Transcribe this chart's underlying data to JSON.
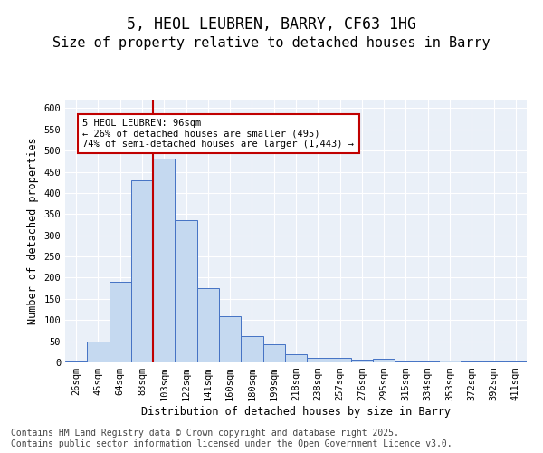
{
  "title_line1": "5, HEOL LEUBREN, BARRY, CF63 1HG",
  "title_line2": "Size of property relative to detached houses in Barry",
  "xlabel": "Distribution of detached houses by size in Barry",
  "ylabel": "Number of detached properties",
  "categories": [
    "26sqm",
    "45sqm",
    "64sqm",
    "83sqm",
    "103sqm",
    "122sqm",
    "141sqm",
    "160sqm",
    "180sqm",
    "199sqm",
    "218sqm",
    "238sqm",
    "257sqm",
    "276sqm",
    "295sqm",
    "315sqm",
    "334sqm",
    "353sqm",
    "372sqm",
    "392sqm",
    "411sqm"
  ],
  "values": [
    3,
    50,
    190,
    430,
    480,
    335,
    175,
    110,
    62,
    43,
    20,
    10,
    10,
    7,
    8,
    3,
    2,
    4,
    2,
    3,
    2
  ],
  "bar_color": "#c5d9f0",
  "bar_edge_color": "#4472c4",
  "vline_x_index": 4,
  "vline_color": "#c00000",
  "annotation_text": "5 HEOL LEUBREN: 96sqm\n← 26% of detached houses are smaller (495)\n74% of semi-detached houses are larger (1,443) →",
  "annotation_box_color": "#c00000",
  "ylim": [
    0,
    620
  ],
  "yticks": [
    0,
    50,
    100,
    150,
    200,
    250,
    300,
    350,
    400,
    450,
    500,
    550,
    600
  ],
  "footnote": "Contains HM Land Registry data © Crown copyright and database right 2025.\nContains public sector information licensed under the Open Government Licence v3.0.",
  "bg_color": "#eaf0f8",
  "title_fontsize": 12,
  "subtitle_fontsize": 11,
  "tick_fontsize": 7.5,
  "footnote_fontsize": 7
}
